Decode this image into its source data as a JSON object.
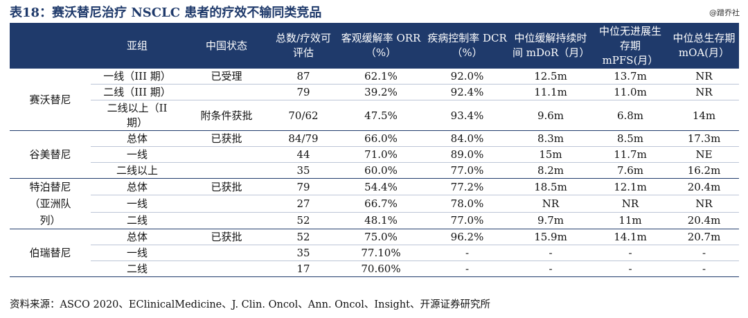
{
  "title": "表18：赛沃替尼治疗 NSCLC 患者的疗效不输同类竞品",
  "watermark": "@蹭乔社",
  "headers": [
    "",
    "亚组",
    "中国状态",
    "总数/疗效可评估",
    "客观缓解率 ORR（%）",
    "疾病控制率 DCR（%）",
    "中位缓解持续时间 mDoR（月）",
    "中位无进展生存期 mPFS(月）",
    "中位总生存期 mOA(月）"
  ],
  "groups": [
    {
      "drug": "赛沃替尼",
      "rows": [
        [
          "一线（III 期）",
          "已受理",
          "87",
          "62.1%",
          "92.0%",
          "12.5m",
          "13.7m",
          "NR"
        ],
        [
          "二线（III 期）",
          "",
          "79",
          "39.2%",
          "92.4%",
          "11.1m",
          "11.0m",
          "NR"
        ],
        [
          "二线以上（II 期）",
          "附条件获批",
          "70/62",
          "47.5%",
          "93.4%",
          "9.6m",
          "6.8m",
          "14m"
        ]
      ]
    },
    {
      "drug": "谷美替尼",
      "rows": [
        [
          "总体",
          "已获批",
          "84/79",
          "66.0%",
          "84.0%",
          "8.3m",
          "8.5m",
          "17.3m"
        ],
        [
          "一线",
          "",
          "44",
          "71.0%",
          "89.0%",
          "15m",
          "11.7m",
          "NE"
        ],
        [
          "二线以上",
          "",
          "35",
          "60.0%",
          "77.0%",
          "8.2m",
          "7.6m",
          "16.2m"
        ]
      ]
    },
    {
      "drug": "特泊替尼（亚洲队列）",
      "rows": [
        [
          "总体",
          "已获批",
          "79",
          "54.4%",
          "77.2%",
          "18.5m",
          "12.1m",
          "20.4m"
        ],
        [
          "一线",
          "",
          "27",
          "66.7%",
          "78.0%",
          "NR",
          "NR",
          "NR"
        ],
        [
          "二线",
          "",
          "52",
          "48.1%",
          "77.0%",
          "9.7m",
          "11m",
          "20.4m"
        ]
      ]
    },
    {
      "drug": "伯瑞替尼",
      "rows": [
        [
          "总体",
          "已获批",
          "52",
          "75.0%",
          "96.2%",
          "15.9m",
          "14.1m",
          "20.7m"
        ],
        [
          "一线",
          "",
          "35",
          "77.10%",
          "-",
          "-",
          "-",
          "-"
        ],
        [
          "二线",
          "",
          "17",
          "70.60%",
          "-",
          "-",
          "-",
          "-"
        ]
      ]
    }
  ],
  "source": "资料来源：ASCO 2020、EClinicalMedicine、J. Clin. Oncol、Ann. Oncol、Insight、开源证券研究所"
}
